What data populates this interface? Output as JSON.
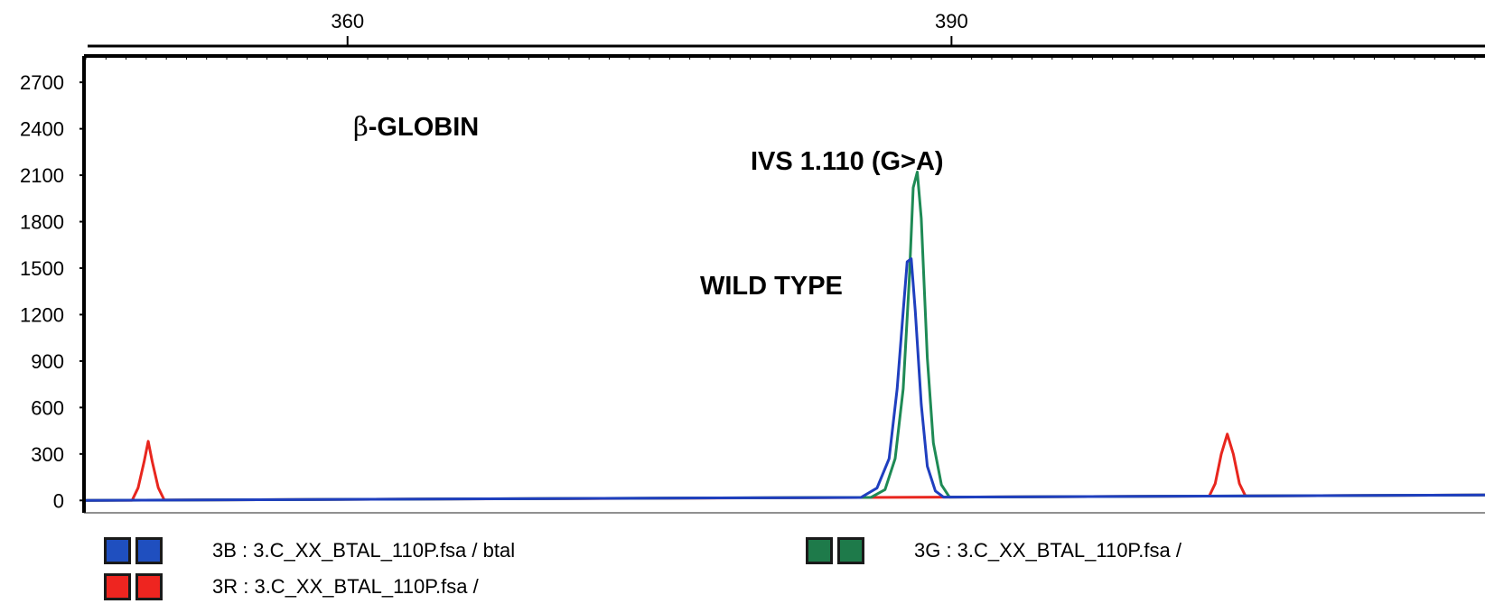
{
  "chart_data": {
    "type": "line",
    "title": "β-GLOBIN",
    "xlabel": "",
    "ylabel": "",
    "x_ticks": [
      360,
      390
    ],
    "xlim": [
      347,
      416.5
    ],
    "y_ticks": [
      0,
      300,
      600,
      900,
      1200,
      1500,
      1800,
      2100,
      2400,
      2700
    ],
    "ylim": [
      -80,
      2870
    ],
    "grid": false,
    "series": [
      {
        "color": "#1f3fbf",
        "points": [
          [
            347,
            0
          ],
          [
            380,
            0
          ],
          [
            385.5,
            0
          ],
          [
            386.3,
            60
          ],
          [
            386.9,
            250
          ],
          [
            387.3,
            700
          ],
          [
            387.6,
            1200
          ],
          [
            387.8,
            1520
          ],
          [
            388.0,
            1540
          ],
          [
            388.2,
            1200
          ],
          [
            388.5,
            600
          ],
          [
            388.8,
            200
          ],
          [
            389.2,
            40
          ],
          [
            389.6,
            0
          ],
          [
            416.5,
            0
          ]
        ]
      },
      {
        "color": "#1e8a55",
        "points": [
          [
            347,
            0
          ],
          [
            380,
            0
          ],
          [
            386.0,
            0
          ],
          [
            386.7,
            50
          ],
          [
            387.2,
            250
          ],
          [
            387.6,
            700
          ],
          [
            387.9,
            1400
          ],
          [
            388.1,
            2000
          ],
          [
            388.3,
            2100
          ],
          [
            388.5,
            1800
          ],
          [
            388.8,
            900
          ],
          [
            389.1,
            350
          ],
          [
            389.5,
            80
          ],
          [
            389.9,
            0
          ],
          [
            416.5,
            0
          ]
        ]
      },
      {
        "color": "#e8261e",
        "points": [
          [
            347,
            0
          ],
          [
            349.3,
            0
          ],
          [
            349.6,
            80
          ],
          [
            349.9,
            250
          ],
          [
            350.1,
            380
          ],
          [
            350.3,
            250
          ],
          [
            350.6,
            80
          ],
          [
            350.9,
            0
          ],
          [
            385.5,
            0
          ],
          [
            388.5,
            0
          ],
          [
            402.8,
            0
          ],
          [
            403.1,
            80
          ],
          [
            403.4,
            270
          ],
          [
            403.7,
            400
          ],
          [
            404.0,
            270
          ],
          [
            404.3,
            80
          ],
          [
            404.6,
            0
          ],
          [
            416.5,
            0
          ]
        ]
      }
    ],
    "annotations": [
      {
        "text": "IVS 1.110 (G>A)"
      },
      {
        "text": "WILD TYPE"
      }
    ]
  },
  "legend": [
    {
      "text": "3B : 3.C_XX_BTAL_110P.fsa / btal",
      "color": "#1f4fbf"
    },
    {
      "text": "3R : 3.C_XX_BTAL_110P.fsa /",
      "color": "#ee2520"
    },
    {
      "text": "3G : 3.C_XX_BTAL_110P.fsa /",
      "color": "#1e7a4a"
    }
  ]
}
